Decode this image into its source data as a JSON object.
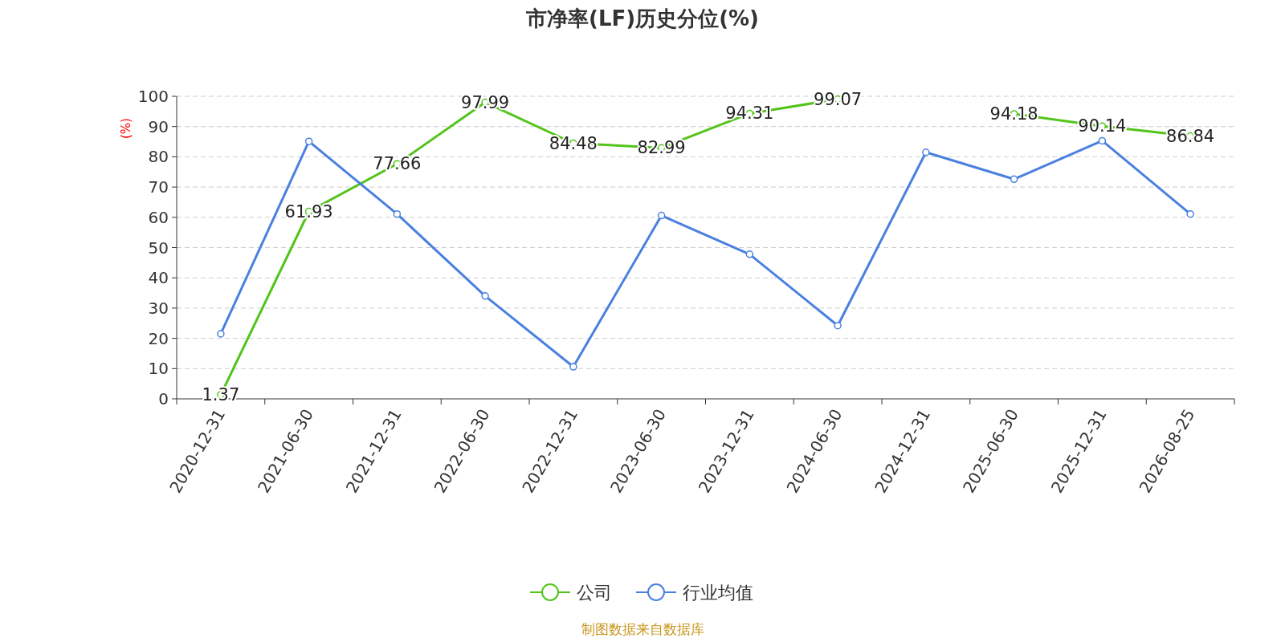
{
  "chart_data": {
    "type": "line",
    "title": "市净率(LF)历史分位(%)",
    "ylabel": "(%)",
    "categories": [
      "2020-12-31",
      "2021-06-30",
      "2021-12-31",
      "2022-06-30",
      "2022-12-31",
      "2023-06-30",
      "2023-12-31",
      "2024-06-30",
      "2024-12-31",
      "2025-06-30",
      "2025-12-31",
      "2026-08-25"
    ],
    "series": [
      {
        "name": "公司",
        "color": "#52c41a",
        "values": [
          1.37,
          61.93,
          77.66,
          97.99,
          84.48,
          82.99,
          94.31,
          99.07,
          null,
          94.18,
          90.14,
          86.84
        ],
        "value_labels": [
          "1.37",
          "61.93",
          "77.66",
          "97.99",
          "84.48",
          "82.99",
          "94.31",
          "99.07",
          null,
          "94.18",
          "90.14",
          "86.84"
        ]
      },
      {
        "name": "行业均值",
        "color": "#4a80e0",
        "values": [
          21.5,
          85.1,
          61.1,
          34.0,
          10.6,
          60.6,
          47.8,
          24.2,
          81.5,
          72.6,
          85.3,
          61.1
        ]
      }
    ],
    "ylim": [
      0,
      100
    ],
    "yticks": [
      0,
      10,
      20,
      30,
      40,
      50,
      60,
      70,
      80,
      90,
      100
    ],
    "grid": "y",
    "legend": "bottom",
    "marker": "circle",
    "line_style": "solid",
    "annotations": [
      "制图数据来自数据库"
    ]
  }
}
